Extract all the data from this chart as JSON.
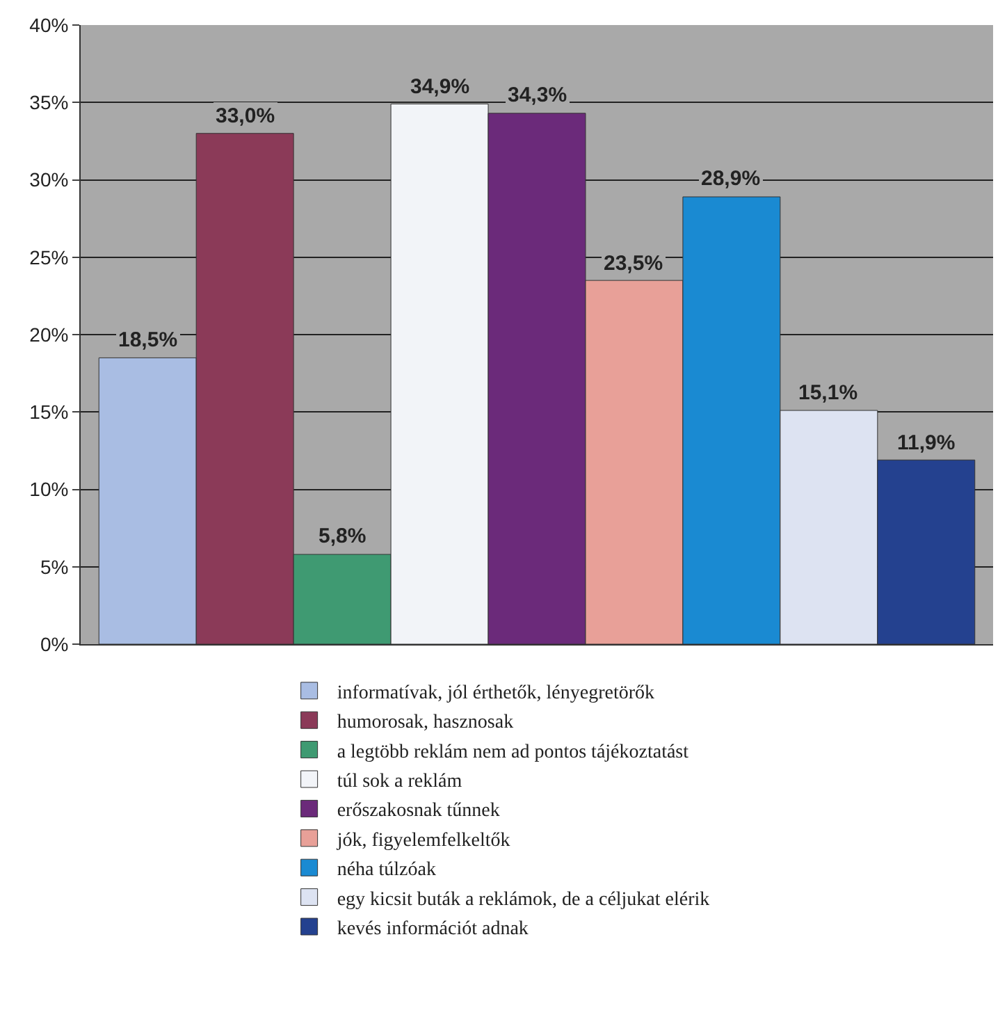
{
  "chart_data": {
    "type": "bar",
    "categories": [
      null
    ],
    "series": [
      {
        "name": "informatívak, jól érthetők, lényegretörők",
        "color": "#a9bde3",
        "values": [
          18.5
        ],
        "value_labels": [
          "18,5%"
        ]
      },
      {
        "name": "humorosak, hasznosak",
        "color": "#8b3a58",
        "values": [
          33.0
        ],
        "value_labels": [
          "33,0%"
        ]
      },
      {
        "name": "a legtöbb reklám nem ad pontos tájékoztatást",
        "color": "#3f9a72",
        "values": [
          5.8
        ],
        "value_labels": [
          "5,8%"
        ]
      },
      {
        "name": "túl sok a reklám",
        "color": "#f2f4f8",
        "values": [
          34.9
        ],
        "value_labels": [
          "34,9%"
        ]
      },
      {
        "name": "erőszakosnak tűnnek",
        "color": "#6b2a7a",
        "values": [
          34.3
        ],
        "value_labels": [
          "34,3%"
        ]
      },
      {
        "name": "jók, figyelemfelkeltők",
        "color": "#e8a098",
        "values": [
          23.5
        ],
        "value_labels": [
          "23,5%"
        ]
      },
      {
        "name": "néha túlzóak",
        "color": "#1a8ad2",
        "values": [
          28.9
        ],
        "value_labels": [
          "28,9%"
        ]
      },
      {
        "name": "egy kicsit buták a reklámok, de a céljukat elérik",
        "color": "#dde3f2",
        "values": [
          15.1
        ],
        "value_labels": [
          "15,1%"
        ]
      },
      {
        "name": "kevés információt adnak",
        "color": "#24418f",
        "values": [
          11.9
        ],
        "value_labels": [
          "11,9%"
        ]
      }
    ],
    "ylim": [
      0,
      40
    ],
    "yticks": [
      {
        "value": 0,
        "label": "0%"
      },
      {
        "value": 5,
        "label": "5%"
      },
      {
        "value": 10,
        "label": "10%"
      },
      {
        "value": 15,
        "label": "15%"
      },
      {
        "value": 20,
        "label": "20%"
      },
      {
        "value": 25,
        "label": "25%"
      },
      {
        "value": 30,
        "label": "30%"
      },
      {
        "value": 35,
        "label": "35%"
      },
      {
        "value": 40,
        "label": "40%"
      }
    ],
    "grid": "y",
    "legend": "bottom"
  }
}
